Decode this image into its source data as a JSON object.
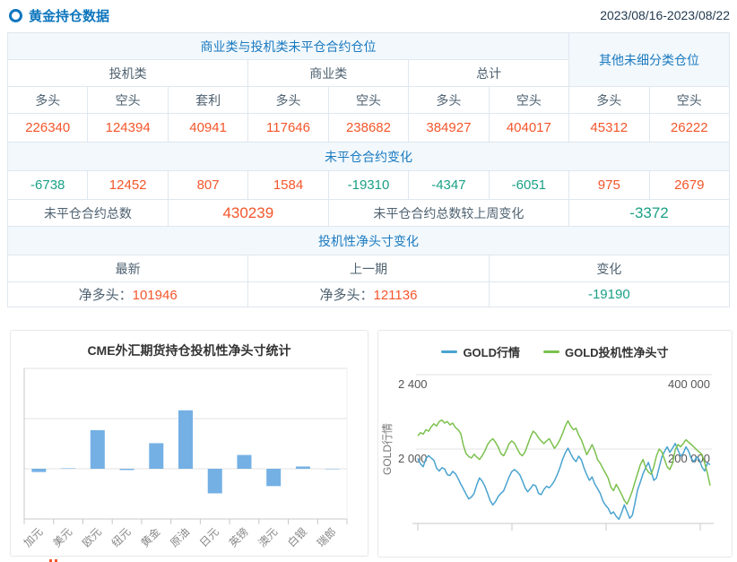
{
  "header": {
    "title": "黄金持仓数据",
    "date_range": "2023/08/16-2023/08/22"
  },
  "colors": {
    "positive": "#f4562b",
    "negative": "#1aa086",
    "header_blue": "#1b7ac0",
    "bar_blue": "#74b0e4",
    "line_blue": "#4aa3cf",
    "line_green": "#7cc14e"
  },
  "table": {
    "group1_title": "商业类与投机类未平仓合约仓位",
    "group2_title": "其他未细分类仓位",
    "subgroups": [
      "投机类",
      "商业类",
      "总计"
    ],
    "col_headers": [
      "多头",
      "空头",
      "套利",
      "多头",
      "空头",
      "多头",
      "空头",
      "多头",
      "空头"
    ],
    "positions": [
      226340,
      124394,
      40941,
      117646,
      238682,
      384927,
      404017,
      45312,
      26222
    ],
    "change_title": "未平仓合约变化",
    "changes": [
      -6738,
      12452,
      807,
      1584,
      -19310,
      -4347,
      -6051,
      975,
      2679
    ],
    "total_label": "未平仓合约总数",
    "total_value": "430239",
    "total_change_label": "未平仓合约总数较上周变化",
    "total_change_value": "-3372",
    "net_section_title": "投机性净头寸变化",
    "net_headers": [
      "最新",
      "上一期",
      "变化"
    ],
    "net_latest_label": "净多头：",
    "net_latest_value": "101946",
    "net_prev_label": "净多头：",
    "net_prev_value": "121136",
    "net_change_value": "-19190"
  },
  "chart_data": [
    {
      "type": "bar",
      "title": "CME外汇期货持仓投机性净头寸统计",
      "categories": [
        "加元",
        "美元",
        "欧元",
        "纽元",
        "黄金",
        "原油",
        "日元",
        "英镑",
        "澳元",
        "白银",
        "瑞郎"
      ],
      "values": [
        -13000,
        2000,
        154000,
        -5000,
        101946,
        233000,
        -98000,
        55000,
        -69000,
        9000,
        -1000
      ],
      "ylim": [
        -200000,
        400000
      ],
      "grid_interval": 200000,
      "grid": true,
      "xlabel": "",
      "ylabel": "",
      "bar_color": "#74b0e4"
    },
    {
      "type": "line",
      "legend_position": "top",
      "grid": true,
      "left_axis": {
        "title": "GOLD行情",
        "tick_values": [
          2400,
          2000
        ],
        "tick_labels": [
          "2 400",
          "2 000"
        ]
      },
      "right_axis": {
        "tick_values": [
          400000,
          200000
        ],
        "tick_labels": [
          "400 000",
          "200 000"
        ]
      },
      "series": [
        {
          "id": "gold-price",
          "name": "GOLD行情",
          "color": "#4aa3cf",
          "axis": "left",
          "values": [
            1950,
            1920,
            1905,
            1948,
            1965,
            1952,
            1940,
            1898,
            1882,
            1900,
            1893,
            1862,
            1858,
            1880,
            1868,
            1842,
            1812,
            1786,
            1758,
            1732,
            1742,
            1762,
            1808,
            1845,
            1828,
            1800,
            1762,
            1722,
            1700,
            1718,
            1745,
            1762,
            1775,
            1812,
            1848,
            1878,
            1890,
            1878,
            1862,
            1830,
            1792,
            1770,
            1788,
            1808,
            1802,
            1762,
            1755,
            1782,
            1800,
            1792,
            1808,
            1830,
            1862,
            1900,
            1945,
            1980,
            2005,
            1975,
            1948,
            1932,
            1962,
            1942,
            1898,
            1862,
            1832,
            1850,
            1812,
            1788,
            1762,
            1722,
            1698,
            1682,
            1652,
            1662,
            1638,
            1622,
            1658,
            1700,
            1665,
            1628,
            1645,
            1712,
            1782,
            1822,
            1868,
            1900,
            1928,
            1882,
            1832,
            1845,
            1902,
            1958,
            1988,
            2012,
            1982,
            2005,
            2030,
            1995,
            1962,
            1978,
            2012,
            1988,
            1948,
            1932,
            1958,
            1942,
            1902,
            1882,
            1925,
            1916
          ]
        },
        {
          "id": "net-position",
          "name": "GOLD投机性净头寸",
          "color": "#7cc14e",
          "axis": "right",
          "values": [
            236000,
            244000,
            240000,
            252000,
            248000,
            260000,
            268000,
            262000,
            274000,
            278000,
            270000,
            274000,
            265000,
            270000,
            258000,
            252000,
            242000,
            210000,
            188000,
            180000,
            176000,
            186000,
            178000,
            172000,
            182000,
            195000,
            212000,
            222000,
            228000,
            218000,
            205000,
            188000,
            182000,
            196000,
            214000,
            222000,
            216000,
            202000,
            188000,
            182000,
            192000,
            212000,
            232000,
            248000,
            242000,
            230000,
            222000,
            215000,
            222000,
            228000,
            215000,
            202000,
            212000,
            225000,
            242000,
            262000,
            276000,
            262000,
            252000,
            256000,
            238000,
            225000,
            205000,
            185000,
            198000,
            212000,
            195000,
            172000,
            162000,
            148000,
            135000,
            122000,
            98000,
            88000,
            105000,
            92000,
            78000,
            62000,
            52000,
            68000,
            88000,
            112000,
            135000,
            158000,
            172000,
            150000,
            138000,
            132000,
            152000,
            182000,
            200000,
            192000,
            172000,
            152000,
            145000,
            162000,
            198000,
            212000,
            206000,
            215000,
            225000,
            218000,
            212000,
            205000,
            198000,
            192000,
            185000,
            162000,
            135000,
            102000
          ]
        }
      ]
    }
  ]
}
